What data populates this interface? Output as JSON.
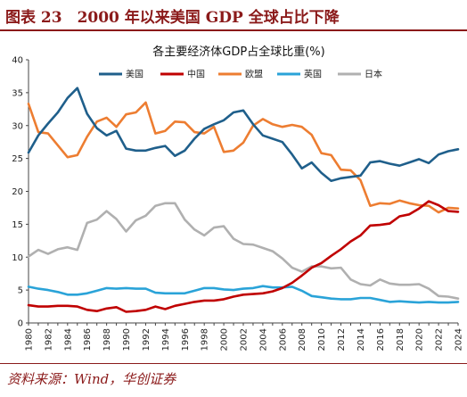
{
  "figure": {
    "title": "图表 23　2000 年以来美国 GDP 全球占比下降",
    "source": "资料来源：Wind，华创证券"
  },
  "colors": {
    "美国": "#1f5f8b",
    "中国": "#c00000",
    "欧盟": "#ed7d31",
    "英国": "#2aa3d8",
    "日本": "#b0b0b0",
    "brand": "#8b1a1a"
  },
  "chart_data": {
    "type": "line",
    "title": "各主要经济体GDP占全球比重(%)",
    "xlabel": "",
    "ylabel": "",
    "ylim": [
      0,
      40
    ],
    "yticks": [
      0,
      5,
      10,
      15,
      20,
      25,
      30,
      35,
      40
    ],
    "xlim": [
      1980,
      2024
    ],
    "xticks": [
      1980,
      1982,
      1984,
      1986,
      1988,
      1990,
      1992,
      1994,
      1996,
      1998,
      2000,
      2002,
      2004,
      2006,
      2008,
      2010,
      2012,
      2014,
      2016,
      2018,
      2020,
      2022,
      2024
    ],
    "x": [
      1980,
      1981,
      1982,
      1983,
      1984,
      1985,
      1986,
      1987,
      1988,
      1989,
      1990,
      1991,
      1992,
      1993,
      1994,
      1995,
      1996,
      1997,
      1998,
      1999,
      2000,
      2001,
      2002,
      2003,
      2004,
      2005,
      2006,
      2007,
      2008,
      2009,
      2010,
      2011,
      2012,
      2013,
      2014,
      2015,
      2016,
      2017,
      2018,
      2019,
      2020,
      2021,
      2022,
      2023,
      2024
    ],
    "legend_position": "top",
    "grid": false,
    "series": [
      {
        "name": "美国",
        "values": [
          25.9,
          28.5,
          30.3,
          32.0,
          34.2,
          35.7,
          31.8,
          29.6,
          28.5,
          29.2,
          26.5,
          26.2,
          26.2,
          26.6,
          26.9,
          25.4,
          26.2,
          28.0,
          29.5,
          30.2,
          30.8,
          32.0,
          32.3,
          30.2,
          28.5,
          28.0,
          27.5,
          25.6,
          23.5,
          24.4,
          22.8,
          21.6,
          22.0,
          22.2,
          22.4,
          24.4,
          24.6,
          24.2,
          23.9,
          24.4,
          24.9,
          24.3,
          25.6,
          26.1,
          26.4
        ]
      },
      {
        "name": "中国",
        "values": [
          2.7,
          2.5,
          2.5,
          2.6,
          2.6,
          2.5,
          2.0,
          1.8,
          2.2,
          2.4,
          1.7,
          1.8,
          2.0,
          2.5,
          2.1,
          2.6,
          2.9,
          3.2,
          3.4,
          3.4,
          3.6,
          4.0,
          4.3,
          4.4,
          4.5,
          4.8,
          5.3,
          6.1,
          7.2,
          8.4,
          9.1,
          10.2,
          11.2,
          12.4,
          13.3,
          14.8,
          14.9,
          15.1,
          16.2,
          16.5,
          17.4,
          18.5,
          17.9,
          17.0,
          16.9
        ]
      },
      {
        "name": "欧盟",
        "values": [
          33.3,
          29.0,
          28.8,
          27.0,
          25.2,
          25.5,
          28.3,
          30.6,
          31.2,
          29.8,
          31.7,
          32.0,
          33.5,
          28.8,
          29.2,
          30.6,
          30.5,
          29.0,
          28.8,
          29.8,
          26.0,
          26.2,
          27.4,
          30.0,
          31.0,
          30.2,
          29.8,
          30.1,
          29.8,
          28.6,
          25.8,
          25.5,
          23.3,
          23.2,
          21.7,
          17.8,
          18.2,
          18.1,
          18.6,
          18.2,
          17.9,
          17.8,
          16.8,
          17.5,
          17.4
        ]
      },
      {
        "name": "英国",
        "values": [
          5.5,
          5.2,
          5.0,
          4.7,
          4.3,
          4.3,
          4.5,
          4.9,
          5.3,
          5.2,
          5.3,
          5.2,
          5.2,
          4.6,
          4.5,
          4.5,
          4.5,
          4.9,
          5.3,
          5.3,
          5.1,
          5.0,
          5.2,
          5.3,
          5.6,
          5.4,
          5.4,
          5.5,
          4.9,
          4.1,
          3.9,
          3.7,
          3.6,
          3.6,
          3.8,
          3.8,
          3.5,
          3.2,
          3.3,
          3.2,
          3.1,
          3.2,
          3.1,
          3.1,
          3.2
        ]
      },
      {
        "name": "日本",
        "values": [
          10.1,
          11.1,
          10.5,
          11.2,
          11.5,
          11.1,
          15.2,
          15.7,
          17.0,
          15.8,
          13.9,
          15.6,
          16.3,
          17.8,
          18.2,
          18.2,
          15.7,
          14.2,
          13.3,
          14.5,
          14.7,
          12.8,
          12.0,
          11.9,
          11.4,
          10.9,
          9.8,
          8.4,
          7.8,
          8.6,
          8.6,
          8.3,
          8.4,
          6.6,
          5.9,
          5.7,
          6.6,
          6.0,
          5.8,
          5.8,
          5.9,
          5.2,
          4.1,
          4.0,
          3.7
        ]
      }
    ]
  }
}
